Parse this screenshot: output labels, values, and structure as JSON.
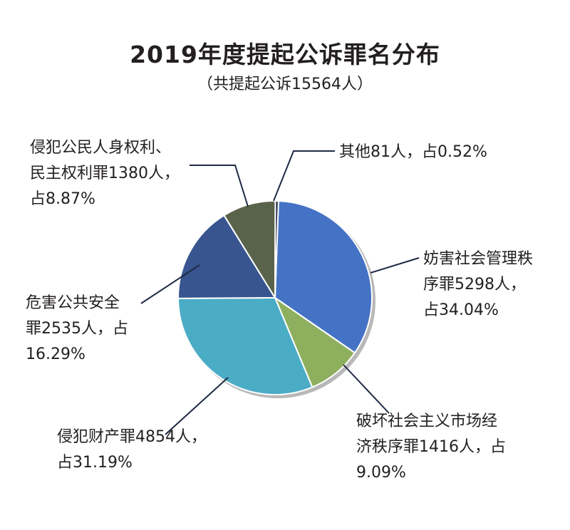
{
  "chart_data": {
    "type": "pie",
    "title": "2019年度提起公诉罪名分布",
    "subtitle": "（共提起公诉15564人）",
    "slices": [
      {
        "key": "disrupt",
        "lines": [
          "妨害社会管理秩",
          "序罪5298人，",
          "占34.04%"
        ],
        "value": 5298,
        "percent": 34.04,
        "color": "#4472c4"
      },
      {
        "key": "economy",
        "lines": [
          "破坏社会主义市场经",
          "济秩序罪1416人，占",
          "9.09%"
        ],
        "value": 1416,
        "percent": 9.09,
        "color": "#8daf5e"
      },
      {
        "key": "property",
        "lines": [
          "侵犯财产罪4854人，",
          "占31.19%"
        ],
        "value": 4854,
        "percent": 31.19,
        "color": "#4bacc6"
      },
      {
        "key": "public",
        "lines": [
          "危害公共安全",
          "罪2535人，占",
          "16.29%"
        ],
        "value": 2535,
        "percent": 16.29,
        "color": "#385590"
      },
      {
        "key": "rights",
        "lines": [
          "侵犯公民人身权利、",
          "民主权利罪1380人，",
          "占8.87%"
        ],
        "value": 1380,
        "percent": 8.87,
        "color": "#59634b"
      },
      {
        "key": "other",
        "lines": [
          "其他81人，占0.52%"
        ],
        "value": 81,
        "percent": 0.52,
        "color": "#1f2a44"
      }
    ]
  }
}
